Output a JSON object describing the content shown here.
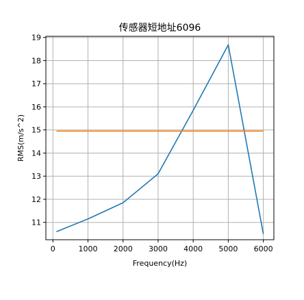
{
  "chart_data": {
    "type": "line",
    "title": "传感器短地址6096",
    "xlabel": "Frequency(Hz)",
    "ylabel": "RMS(m/s^2)",
    "xlim": [
      -200,
      6300
    ],
    "ylim": [
      10.25,
      19.05
    ],
    "xticks": [
      0,
      1000,
      2000,
      3000,
      4000,
      5000,
      6000
    ],
    "yticks": [
      11,
      12,
      13,
      14,
      15,
      16,
      17,
      18,
      19
    ],
    "grid": true,
    "series": [
      {
        "color": "#1f77b4",
        "x": [
          100,
          1000,
          2000,
          3000,
          4000,
          5000,
          6000
        ],
        "y": [
          10.6,
          11.15,
          11.85,
          13.1,
          15.85,
          18.68,
          10.5
        ]
      },
      {
        "color": "#ff7f0e",
        "x": [
          100,
          6000
        ],
        "y": [
          14.95,
          14.95
        ]
      }
    ]
  }
}
